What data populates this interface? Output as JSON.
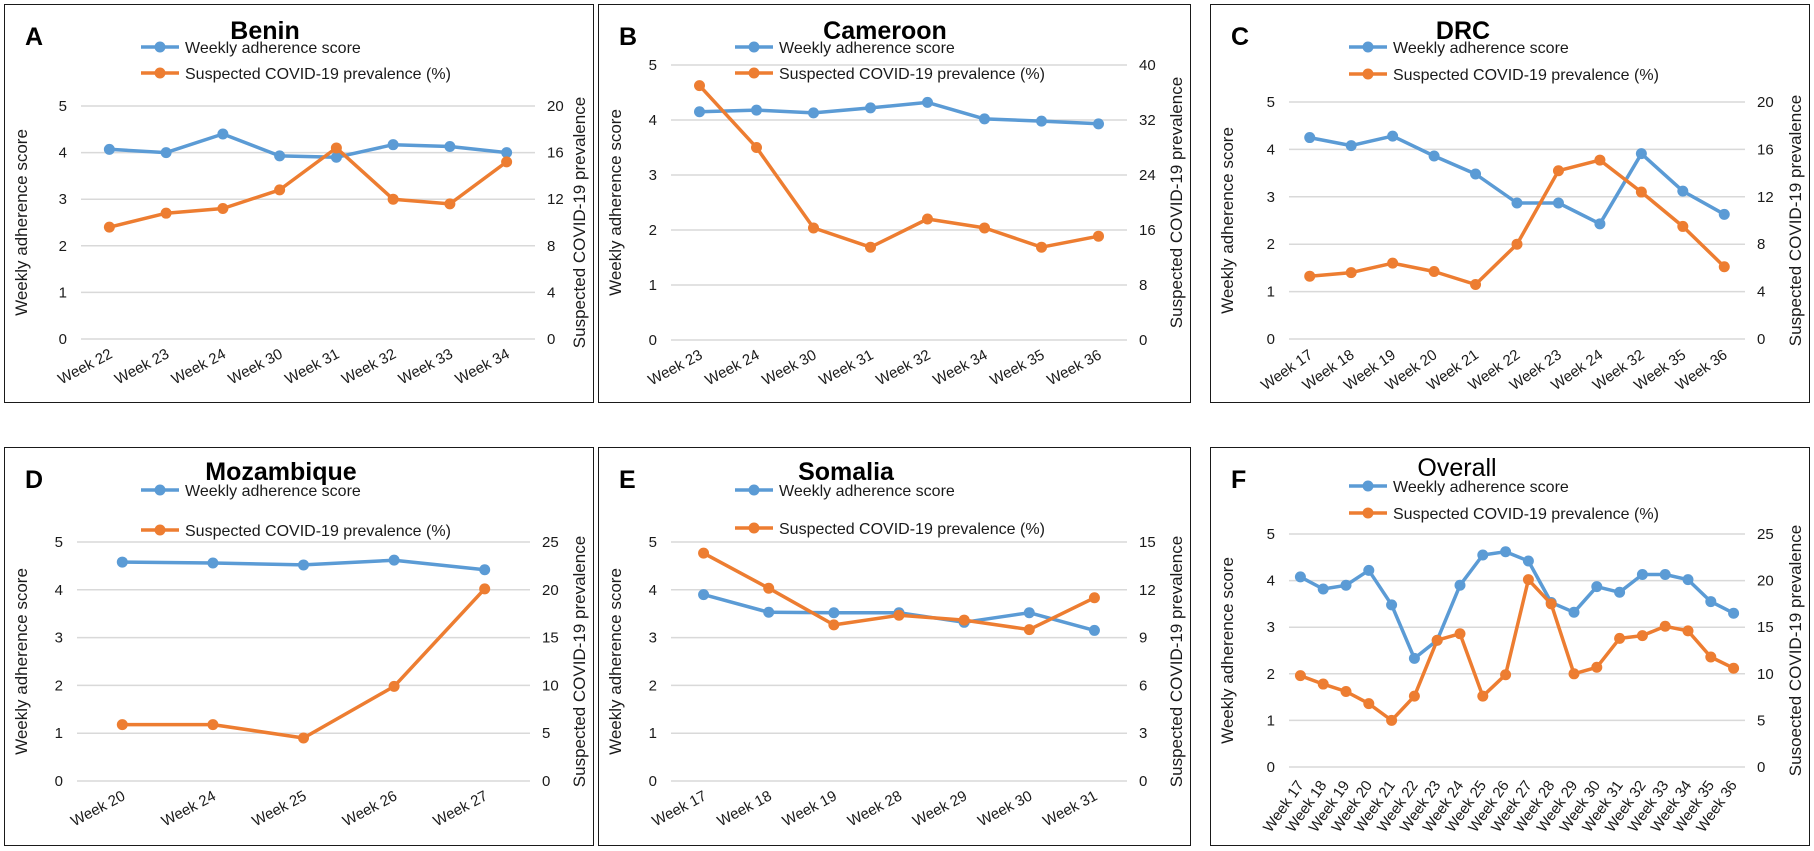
{
  "colors": {
    "adherence": "#5b9bd5",
    "prevalence": "#ed7d31"
  },
  "legend": {
    "series1": "Weekly adherence score",
    "series2": "Suspected COVID-19 prevalence (%)"
  },
  "chart_data": [
    {
      "id": "A",
      "panel_letter": "A",
      "type": "line",
      "title": "Benin",
      "title_bold": true,
      "ylabel_left": "Weekly adherence score",
      "ylabel_right": "Suspected COVID-19 prevalence",
      "ylim_left": [
        0,
        5
      ],
      "yticks_left": [
        "0",
        "1",
        "2",
        "3",
        "4",
        "5"
      ],
      "ylim_right": [
        0,
        20
      ],
      "yticks_right": [
        "0",
        "4",
        "8",
        "12",
        "16",
        "20"
      ],
      "categories": [
        "Week 22",
        "Week 23",
        "Week 24",
        "Week 30",
        "Week 31",
        "Week 32",
        "Week 33",
        "Week 34"
      ],
      "series": [
        {
          "name": "Weekly adherence score",
          "axis": "left",
          "values": [
            4.07,
            4.0,
            4.4,
            3.93,
            3.9,
            4.17,
            4.13,
            4.0
          ]
        },
        {
          "name": "Suspected COVID-19 prevalence (%)",
          "axis": "right",
          "values": [
            9.6,
            10.8,
            11.2,
            12.8,
            16.4,
            12.0,
            11.6,
            15.2
          ]
        }
      ]
    },
    {
      "id": "B",
      "panel_letter": "B",
      "type": "line",
      "title": "Cameroon",
      "title_bold": true,
      "ylabel_left": "Weekly adherence score",
      "ylabel_right": "Suspected COVID-19 prevalence",
      "ylim_left": [
        0,
        5
      ],
      "yticks_left": [
        "0",
        "1",
        "2",
        "3",
        "4",
        "5"
      ],
      "ylim_right": [
        0,
        40
      ],
      "yticks_right": [
        "0",
        "8",
        "16",
        "24",
        "32",
        "40"
      ],
      "categories": [
        "Week 23",
        "Week 24",
        "Week 30",
        "Week 31",
        "Week 32",
        "Week 34",
        "Week 35",
        "Week 36"
      ],
      "series": [
        {
          "name": "Weekly adherence score",
          "axis": "left",
          "values": [
            4.15,
            4.18,
            4.13,
            4.22,
            4.32,
            4.02,
            3.98,
            3.93
          ]
        },
        {
          "name": "Suspected COVID-19 prevalence (%)",
          "axis": "right",
          "values": [
            37.0,
            28.0,
            16.3,
            13.5,
            17.6,
            16.3,
            13.5,
            15.1
          ]
        }
      ]
    },
    {
      "id": "C",
      "panel_letter": "C",
      "type": "line",
      "title": "DRC",
      "title_bold": true,
      "ylabel_left": "Weekly adherence score",
      "ylabel_right": "Suspected COVID-19 prevalence",
      "ylim_left": [
        0,
        5
      ],
      "yticks_left": [
        "0",
        "1",
        "2",
        "3",
        "4",
        "5"
      ],
      "ylim_right": [
        0,
        20
      ],
      "yticks_right": [
        "0",
        "4",
        "8",
        "12",
        "16",
        "20"
      ],
      "categories": [
        "Week 17",
        "Week 18",
        "Week 19",
        "Week 20",
        "Week 21",
        "Week 22",
        "Week 23",
        "Week 24",
        "Week 32",
        "Week 35",
        "Week 36"
      ],
      "series": [
        {
          "name": "Weekly adherence score",
          "axis": "left",
          "values": [
            4.25,
            4.08,
            4.28,
            3.86,
            3.48,
            2.87,
            2.87,
            2.43,
            3.91,
            3.12,
            2.63
          ]
        },
        {
          "name": "Suspected COVID-19 prevalence (%)",
          "axis": "right",
          "values": [
            5.3,
            5.6,
            6.4,
            5.7,
            4.6,
            8.0,
            14.2,
            15.1,
            12.4,
            9.5,
            6.1
          ]
        }
      ]
    },
    {
      "id": "D",
      "panel_letter": "D",
      "type": "line",
      "title": "Mozambique",
      "title_bold": true,
      "ylabel_left": "Weekly adherence score",
      "ylabel_right": "Suspected COVID-19 prevalence",
      "ylim_left": [
        0,
        5
      ],
      "yticks_left": [
        "0",
        "1",
        "2",
        "3",
        "4",
        "5"
      ],
      "ylim_right": [
        0,
        25
      ],
      "yticks_right": [
        "0",
        "5",
        "10",
        "15",
        "20",
        "25"
      ],
      "categories": [
        "Week 20",
        "Week 24",
        "Week 25",
        "Week 26",
        "Week 27"
      ],
      "series": [
        {
          "name": "Weekly adherence score",
          "axis": "left",
          "values": [
            4.58,
            4.56,
            4.52,
            4.62,
            4.42
          ]
        },
        {
          "name": "Suspected COVID-19 prevalence (%)",
          "axis": "right",
          "values": [
            5.9,
            5.9,
            4.5,
            9.9,
            20.1
          ]
        }
      ]
    },
    {
      "id": "E",
      "panel_letter": "E",
      "type": "line",
      "title": "Somalia",
      "title_bold": true,
      "ylabel_left": "Weekly adherence score",
      "ylabel_right": "Suspected COVID-19 prevalence",
      "ylim_left": [
        0,
        5
      ],
      "yticks_left": [
        "0",
        "1",
        "2",
        "3",
        "4",
        "5"
      ],
      "ylim_right": [
        0,
        15
      ],
      "yticks_right": [
        "0",
        "3",
        "6",
        "9",
        "12",
        "15"
      ],
      "categories": [
        "Week 17",
        "Week 18",
        "Week 19",
        "Week 28",
        "Week 29",
        "Week 30",
        "Week 31"
      ],
      "series": [
        {
          "name": "Weekly adherence score",
          "axis": "left",
          "values": [
            3.9,
            3.53,
            3.52,
            3.52,
            3.32,
            3.52,
            3.15
          ]
        },
        {
          "name": "Suspected COVID-19 prevalence (%)",
          "axis": "right",
          "values": [
            14.3,
            12.1,
            9.8,
            10.4,
            10.1,
            9.5,
            11.5
          ]
        }
      ]
    },
    {
      "id": "F",
      "panel_letter": "F",
      "type": "line",
      "title": "Overall",
      "title_bold": false,
      "ylabel_left": "Weekly adherence score",
      "ylabel_right": "Susoected COVID-19 prevalence",
      "ylim_left": [
        0,
        5
      ],
      "yticks_left": [
        "0",
        "1",
        "2",
        "3",
        "4",
        "5"
      ],
      "ylim_right": [
        0,
        25
      ],
      "yticks_right": [
        "0",
        "5",
        "10",
        "15",
        "20",
        "25"
      ],
      "categories": [
        "Week 17",
        "Week 18",
        "Week 19",
        "Week 20",
        "Week 21",
        "Week 22",
        "Week 23",
        "Week 24",
        "Week 25",
        "Week 26",
        "Week 27",
        "Week 28",
        "Week 29",
        "Week 30",
        "Week 31",
        "Week 32",
        "Week 33",
        "Week 34",
        "Week 35",
        "Week 36"
      ],
      "series": [
        {
          "name": "Weekly adherence score",
          "axis": "left",
          "values": [
            4.08,
            3.82,
            3.9,
            4.22,
            3.48,
            2.33,
            2.72,
            3.9,
            4.55,
            4.62,
            4.42,
            3.53,
            3.32,
            3.87,
            3.75,
            4.13,
            4.13,
            4.02,
            3.55,
            3.3
          ]
        },
        {
          "name": "Suspected COVID-19 prevalence (%)",
          "axis": "right",
          "values": [
            9.8,
            8.9,
            8.1,
            6.8,
            5.0,
            7.6,
            13.6,
            14.3,
            7.6,
            9.9,
            20.1,
            17.5,
            10.0,
            10.7,
            13.8,
            14.1,
            15.1,
            14.6,
            11.8,
            10.6
          ]
        }
      ]
    }
  ]
}
